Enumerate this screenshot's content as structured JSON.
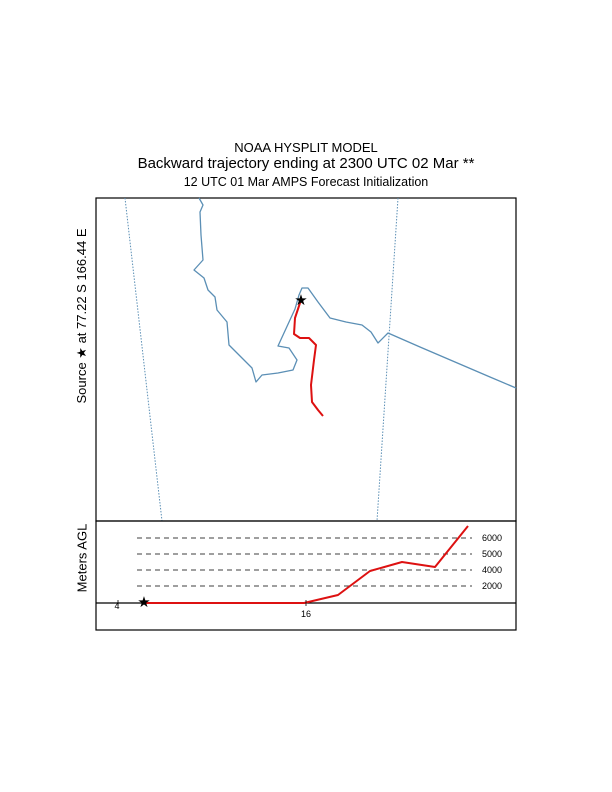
{
  "header": {
    "line1": "NOAA HYSPLIT MODEL",
    "line2": "Backward trajectory ending at 2300 UTC 02 Mar **",
    "line3": "12 UTC 01 Mar    AMPS  Forecast Initialization"
  },
  "source_label": "Source  ★  at   77.22 S  166.44 E",
  "source_location": {
    "lat": "77.22 S",
    "lon": "166.44 E"
  },
  "height_axis": {
    "label": "Meters AGL",
    "levels": [
      "6000",
      "5000",
      "4000",
      "2000"
    ]
  },
  "time_axis": {
    "labels": [
      "4",
      "16"
    ]
  },
  "colors": {
    "trajectory": "#dd1111",
    "coastline": "#5b8fb5",
    "meridian": "#5b8fb5",
    "frame": "#000000"
  },
  "icons": {
    "source_marker": "star-icon"
  }
}
